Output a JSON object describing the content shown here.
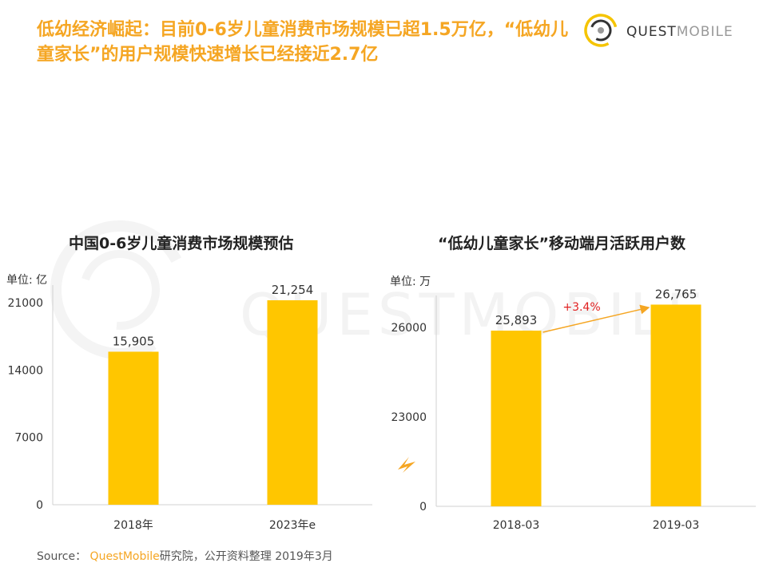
{
  "page": {
    "title": "低幼经济崛起：目前0-6岁儿童消费市场规模已超1.5万亿，“低幼儿童家长”的用户规模快速增长已经接近2.7亿",
    "logo_text_bold": "QUEST",
    "logo_text_light": "MOBILE",
    "watermark_text": "QUESTMOBILE",
    "source_prefix": "Source：",
    "source_brand": "QuestMobile",
    "source_suffix": "研究院，公开资料整理 2019年3月"
  },
  "colors": {
    "accent": "#f5a623",
    "bar": "#ffc600",
    "growth": "#e02020"
  },
  "chart_data": [
    {
      "type": "bar",
      "title": "中国0-6岁儿童消费市场规模预估",
      "unit_label": "单位: 亿",
      "categories": [
        "2018年",
        "2023年e"
      ],
      "values": [
        15905,
        21254
      ],
      "value_labels": [
        "15,905",
        "21,254"
      ],
      "ylim": [
        0,
        22000
      ],
      "yticks": [
        0,
        7000,
        14000,
        21000
      ],
      "ytick_labels": [
        "0",
        "7000",
        "14000",
        "21000"
      ]
    },
    {
      "type": "bar",
      "title": "“低幼儿童家长”移动端月活跃用户数",
      "unit_label": "单位: 万",
      "categories": [
        "2018-03",
        "2019-03"
      ],
      "values": [
        25893,
        26765
      ],
      "value_labels": [
        "25,893",
        "26,765"
      ],
      "axis_break": true,
      "ylim": [
        20000,
        27000
      ],
      "yticks": [
        0,
        23000,
        26000
      ],
      "ytick_labels": [
        "0",
        "23000",
        "26000"
      ],
      "annotation": "+3.4%"
    }
  ]
}
